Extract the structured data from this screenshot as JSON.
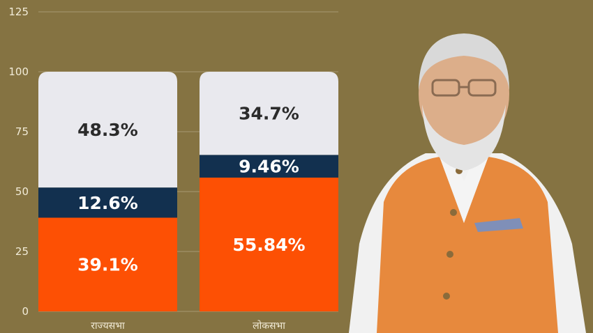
{
  "colors": {
    "background": "#857342",
    "grid": "#a79a72",
    "text": "#1f1f1f",
    "tick_text": "#f2ecd8",
    "category_text": "#f2ecd8",
    "seg_light": "#e9e9ee",
    "seg_navy": "#12304f",
    "seg_orange": "#fd5004",
    "label_dark": "#2b2b2b",
    "label_light": "#ffffff"
  },
  "chart_data": {
    "type": "bar",
    "stacked": true,
    "categories": [
      "राज्यसभा",
      "लोकसभा"
    ],
    "ylim": [
      0,
      125
    ],
    "yticks": [
      "0",
      "25",
      "50",
      "75",
      "100",
      "125"
    ],
    "grid": true,
    "series": [
      {
        "name": "orange",
        "color": "#fd5004",
        "values": [
          39.1,
          55.84
        ],
        "labels": [
          "39.1%",
          "55.84%"
        ]
      },
      {
        "name": "navy",
        "color": "#12304f",
        "values": [
          12.6,
          9.46
        ],
        "labels": [
          "12.6%",
          "9.46%"
        ]
      },
      {
        "name": "light",
        "color": "#e9e9ee",
        "values": [
          48.3,
          34.7
        ],
        "labels": [
          "48.3%",
          "34.7%"
        ]
      }
    ]
  },
  "portrait": {
    "icon": "person-portrait-icon"
  }
}
